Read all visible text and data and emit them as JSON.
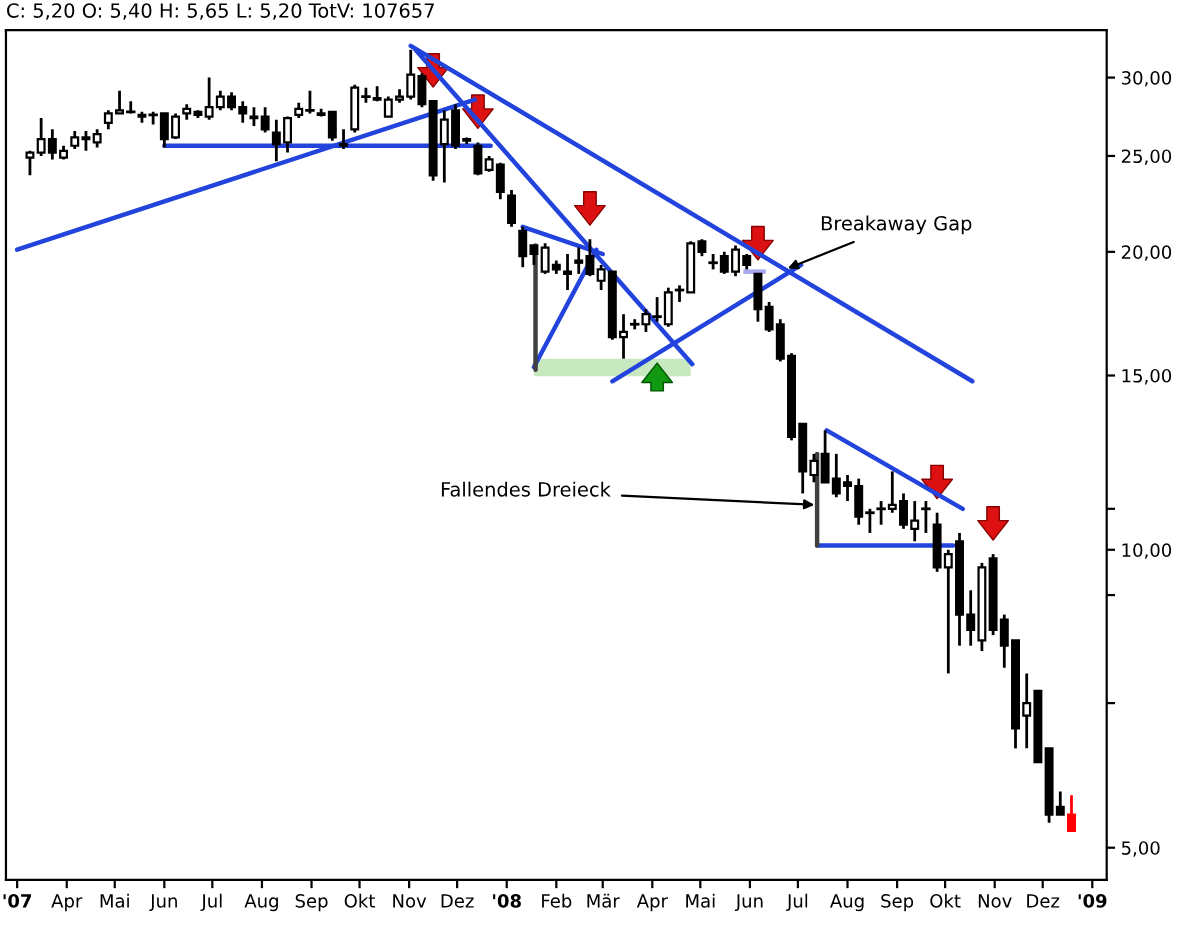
{
  "chart_data": {
    "type": "candlestick",
    "title": "C: 5,20 O: 5,40 H: 5,65 L: 5,20 TotV: 107657",
    "x": [
      "2007-03-09",
      "2007-03-16",
      "2007-03-23",
      "2007-03-30",
      "2007-04-06",
      "2007-04-13",
      "2007-04-20",
      "2007-04-27",
      "2007-05-04",
      "2007-05-11",
      "2007-05-18",
      "2007-05-25",
      "2007-06-01",
      "2007-06-08",
      "2007-06-15",
      "2007-06-22",
      "2007-06-29",
      "2007-07-06",
      "2007-07-13",
      "2007-07-20",
      "2007-07-27",
      "2007-08-03",
      "2007-08-10",
      "2007-08-17",
      "2007-08-24",
      "2007-08-31",
      "2007-09-07",
      "2007-09-14",
      "2007-09-21",
      "2007-09-28",
      "2007-10-05",
      "2007-10-12",
      "2007-10-19",
      "2007-10-26",
      "2007-11-02",
      "2007-11-09",
      "2007-11-16",
      "2007-11-23",
      "2007-11-30",
      "2007-12-07",
      "2007-12-14",
      "2007-12-21",
      "2007-12-28",
      "2008-01-04",
      "2008-01-11",
      "2008-01-18",
      "2008-01-25",
      "2008-02-01",
      "2008-02-08",
      "2008-02-15",
      "2008-02-22",
      "2008-02-29",
      "2008-03-07",
      "2008-03-14",
      "2008-03-21",
      "2008-03-28",
      "2008-04-04",
      "2008-04-11",
      "2008-04-18",
      "2008-04-25",
      "2008-05-02",
      "2008-05-09",
      "2008-05-16",
      "2008-05-23",
      "2008-05-30",
      "2008-06-06",
      "2008-06-13",
      "2008-06-20",
      "2008-06-27",
      "2008-07-04",
      "2008-07-11",
      "2008-07-18",
      "2008-07-25",
      "2008-08-01",
      "2008-08-08",
      "2008-08-15",
      "2008-08-22",
      "2008-08-29",
      "2008-09-05",
      "2008-09-12",
      "2008-09-19",
      "2008-09-26",
      "2008-10-03",
      "2008-10-10",
      "2008-10-17",
      "2008-10-24",
      "2008-10-31",
      "2008-11-07",
      "2008-11-14",
      "2008-11-21",
      "2008-11-28",
      "2008-12-05",
      "2008-12-12",
      "2008-12-19"
    ],
    "ohlc": [
      [
        24.9,
        25.3,
        23.9,
        25.2
      ],
      [
        25.2,
        27.3,
        25.0,
        26.0
      ],
      [
        26.0,
        26.6,
        24.8,
        25.2
      ],
      [
        24.9,
        25.6,
        24.8,
        25.3
      ],
      [
        25.6,
        26.5,
        25.4,
        26.1
      ],
      [
        26.0,
        26.5,
        25.3,
        26.1
      ],
      [
        25.8,
        26.6,
        25.5,
        26.3
      ],
      [
        27.0,
        27.8,
        26.6,
        27.6
      ],
      [
        27.6,
        29.1,
        27.6,
        27.8
      ],
      [
        27.7,
        28.4,
        27.6,
        27.7
      ],
      [
        27.5,
        27.7,
        27.0,
        27.4
      ],
      [
        27.5,
        27.7,
        26.9,
        27.5
      ],
      [
        27.6,
        27.6,
        25.5,
        26.0
      ],
      [
        26.1,
        27.6,
        26.0,
        27.4
      ],
      [
        27.6,
        28.2,
        27.2,
        27.9
      ],
      [
        27.7,
        27.8,
        27.3,
        27.5
      ],
      [
        27.4,
        30.0,
        27.2,
        28.0
      ],
      [
        28.0,
        29.1,
        27.8,
        28.7
      ],
      [
        28.7,
        29.0,
        27.8,
        28.0
      ],
      [
        28.0,
        28.4,
        27.0,
        27.6
      ],
      [
        27.4,
        28.0,
        26.8,
        27.3
      ],
      [
        27.4,
        28.0,
        26.4,
        26.6
      ],
      [
        26.4,
        27.2,
        24.7,
        25.7
      ],
      [
        25.8,
        27.4,
        25.2,
        27.3
      ],
      [
        27.5,
        28.3,
        27.3,
        27.9
      ],
      [
        27.8,
        29.1,
        27.6,
        27.8
      ],
      [
        27.6,
        27.9,
        27.4,
        27.5
      ],
      [
        27.7,
        27.7,
        25.9,
        26.1
      ],
      [
        25.7,
        26.6,
        25.4,
        25.6
      ],
      [
        26.6,
        29.5,
        26.4,
        29.3
      ],
      [
        28.7,
        29.3,
        28.3,
        28.7
      ],
      [
        28.6,
        29.4,
        28.4,
        28.5
      ],
      [
        27.4,
        28.7,
        27.4,
        28.5
      ],
      [
        28.5,
        29.2,
        28.3,
        28.7
      ],
      [
        28.7,
        32.0,
        28.5,
        30.2
      ],
      [
        30.1,
        30.3,
        28.0,
        28.2
      ],
      [
        28.4,
        28.4,
        23.6,
        23.9
      ],
      [
        25.7,
        27.8,
        23.5,
        27.2
      ],
      [
        27.8,
        28.2,
        25.4,
        25.6
      ],
      [
        26.0,
        26.1,
        25.7,
        25.9
      ],
      [
        25.6,
        25.8,
        23.9,
        24.0
      ],
      [
        24.2,
        25.0,
        24.1,
        24.8
      ],
      [
        24.5,
        24.6,
        22.6,
        23.0
      ],
      [
        22.8,
        23.1,
        21.2,
        21.4
      ],
      [
        21.0,
        21.2,
        19.3,
        19.8
      ],
      [
        20.3,
        20.3,
        19.4,
        19.9
      ],
      [
        19.1,
        20.4,
        19.0,
        20.2
      ],
      [
        19.4,
        19.6,
        19.0,
        19.2
      ],
      [
        19.1,
        19.9,
        18.3,
        19.0
      ],
      [
        19.6,
        20.2,
        19.0,
        19.5
      ],
      [
        19.8,
        20.6,
        18.9,
        19.0
      ],
      [
        18.7,
        19.4,
        18.3,
        19.2
      ],
      [
        19.1,
        19.1,
        16.3,
        16.4
      ],
      [
        16.4,
        17.3,
        15.6,
        16.6
      ],
      [
        16.9,
        17.1,
        16.7,
        16.9
      ],
      [
        16.9,
        17.5,
        16.6,
        17.3
      ],
      [
        17.2,
        18.0,
        17.0,
        17.2
      ],
      [
        16.9,
        18.4,
        16.8,
        18.2
      ],
      [
        18.3,
        18.5,
        17.8,
        18.3
      ],
      [
        18.2,
        20.5,
        18.2,
        20.4
      ],
      [
        20.5,
        20.6,
        19.8,
        20.0
      ],
      [
        19.5,
        19.9,
        19.2,
        19.5
      ],
      [
        19.8,
        20.0,
        19.0,
        19.1
      ],
      [
        19.1,
        20.3,
        18.9,
        20.1
      ],
      [
        19.8,
        19.9,
        19.2,
        19.4
      ],
      [
        19.0,
        19.0,
        17.0,
        17.5
      ],
      [
        17.6,
        17.8,
        16.6,
        16.7
      ],
      [
        16.9,
        17.1,
        15.5,
        15.6
      ],
      [
        15.7,
        15.8,
        12.9,
        13.0
      ],
      [
        13.4,
        13.4,
        11.4,
        12.0
      ],
      [
        11.9,
        12.5,
        11.7,
        12.3
      ],
      [
        12.5,
        13.2,
        11.7,
        11.7
      ],
      [
        11.8,
        12.5,
        11.3,
        11.4
      ],
      [
        11.7,
        11.9,
        11.2,
        11.6
      ],
      [
        11.6,
        11.8,
        10.6,
        10.8
      ],
      [
        10.9,
        11.0,
        10.4,
        10.9
      ],
      [
        11.0,
        11.2,
        10.6,
        11.0
      ],
      [
        11.0,
        12.0,
        10.9,
        11.1
      ],
      [
        11.2,
        11.4,
        10.5,
        10.6
      ],
      [
        10.5,
        11.2,
        10.2,
        10.7
      ],
      [
        11.0,
        11.2,
        10.4,
        11.0
      ],
      [
        10.6,
        10.9,
        9.5,
        9.6
      ],
      [
        9.6,
        10.0,
        7.5,
        9.9
      ],
      [
        10.2,
        10.4,
        8.0,
        8.6
      ],
      [
        8.6,
        9.1,
        8.0,
        8.3
      ],
      [
        8.1,
        9.7,
        7.9,
        9.6
      ],
      [
        9.8,
        9.9,
        8.2,
        8.3
      ],
      [
        8.5,
        8.6,
        7.6,
        8.0
      ],
      [
        8.1,
        8.1,
        6.3,
        6.6
      ],
      [
        6.8,
        7.5,
        6.3,
        7.0
      ],
      [
        7.2,
        7.2,
        6.1,
        6.1
      ],
      [
        6.3,
        6.3,
        5.3,
        5.4
      ],
      [
        5.5,
        5.7,
        5.4,
        5.4
      ],
      [
        5.4,
        5.65,
        5.2,
        5.2
      ]
    ],
    "colors": [
      "#ffffff",
      "#ffffff",
      "#000000",
      "#ffffff",
      "#ffffff",
      "#ffffff",
      "#ffffff",
      "#ffffff",
      "#ffffff",
      "#000000",
      "#000000",
      "#000000",
      "#000000",
      "#ffffff",
      "#ffffff",
      "#000000",
      "#ffffff",
      "#ffffff",
      "#000000",
      "#000000",
      "#000000",
      "#000000",
      "#000000",
      "#ffffff",
      "#ffffff",
      "#000000",
      "#000000",
      "#000000",
      "#000000",
      "#ffffff",
      "#000000",
      "#000000",
      "#ffffff",
      "#ffffff",
      "#ffffff",
      "#000000",
      "#000000",
      "#ffffff",
      "#000000",
      "#000000",
      "#000000",
      "#ffffff",
      "#000000",
      "#000000",
      "#000000",
      "#000000",
      "#ffffff",
      "#000000",
      "#000000",
      "#000000",
      "#000000",
      "#ffffff",
      "#000000",
      "#ffffff",
      "#000000",
      "#ffffff",
      "#000000",
      "#ffffff",
      "#000000",
      "#ffffff",
      "#000000",
      "#000000",
      "#000000",
      "#ffffff",
      "#000000",
      "#000000",
      "#000000",
      "#000000",
      "#000000",
      "#000000",
      "#ffffff",
      "#000000",
      "#000000",
      "#000000",
      "#000000",
      "#000000",
      "#000000",
      "#ffffff",
      "#000000",
      "#ffffff",
      "#000000",
      "#000000",
      "#ffffff",
      "#000000",
      "#000000",
      "#ffffff",
      "#000000",
      "#000000",
      "#000000",
      "#ffffff",
      "#000000",
      "#000000",
      "#000000",
      "#ff0000"
    ],
    "series": [
      {
        "type": "line",
        "color": "#2244dd",
        "x": [
          "2007-03-01",
          "2007-12-12"
        ],
        "values": [
          20.1,
          28.5
        ]
      },
      {
        "type": "line",
        "color": "#2244dd",
        "x": [
          "2007-06-01",
          "2007-12-22"
        ],
        "values": [
          25.6,
          25.6
        ]
      },
      {
        "type": "line",
        "color": "#2244dd",
        "x": [
          "2007-11-02",
          "2008-10-18"
        ],
        "values": [
          32.3,
          14.8
        ]
      },
      {
        "type": "line",
        "color": "#2244dd",
        "x": [
          "2007-11-05",
          "2008-04-26"
        ],
        "values": [
          32.0,
          15.4
        ]
      },
      {
        "type": "line",
        "color": "#2244dd",
        "x": [
          "2008-01-11",
          "2008-03-01"
        ],
        "values": [
          21.2,
          19.9
        ]
      },
      {
        "type": "line",
        "color": "#2244dd",
        "x": [
          "2008-01-18",
          "2008-02-26"
        ],
        "values": [
          15.3,
          20.1
        ]
      },
      {
        "type": "line",
        "color": "#404040",
        "x": [
          "2008-01-19",
          "2008-01-19"
        ],
        "values": [
          20.3,
          15.2
        ]
      },
      {
        "type": "line",
        "color": "#2244dd",
        "x": [
          "2008-03-07",
          "2008-07-03"
        ],
        "values": [
          14.8,
          19.4
        ]
      },
      {
        "type": "line",
        "color": "#2244dd",
        "x": [
          "2008-07-19",
          "2008-10-12"
        ],
        "values": [
          13.2,
          11.0
        ]
      },
      {
        "type": "line",
        "color": "#2244dd",
        "x": [
          "2008-07-13",
          "2008-10-06"
        ],
        "values": [
          10.1,
          10.1
        ]
      },
      {
        "type": "line",
        "color": "#404040",
        "x": [
          "2008-07-13",
          "2008-07-13"
        ],
        "values": [
          12.5,
          10.1
        ]
      }
    ],
    "annotations": [
      {
        "text": "Breakaway Gap",
        "x": "2008-06-23",
        "y": 19.2
      },
      {
        "text": "Fallendes Dreieck",
        "x": "2008-07-13",
        "y": 11.1
      }
    ],
    "log": true,
    "xlim": [
      "2007-02-22",
      "2009-01-10"
    ],
    "xticks": [
      {
        "value": "2007-03-01",
        "label": "'07"
      },
      {
        "value": "2007-04-01",
        "label": "Apr"
      },
      {
        "value": "2007-05-01",
        "label": "Mai"
      },
      {
        "value": "2007-06-01",
        "label": "Jun"
      },
      {
        "value": "2007-07-01",
        "label": "Jul"
      },
      {
        "value": "2007-08-01",
        "label": "Aug"
      },
      {
        "value": "2007-09-01",
        "label": "Sep"
      },
      {
        "value": "2007-10-01",
        "label": "Okt"
      },
      {
        "value": "2007-11-01",
        "label": "Nov"
      },
      {
        "value": "2007-12-01",
        "label": "Dez"
      },
      {
        "value": "2008-01-01",
        "label": "'08"
      },
      {
        "value": "2008-02-01",
        "label": "Feb"
      },
      {
        "value": "2008-03-01",
        "label": "Mär"
      },
      {
        "value": "2008-04-01",
        "label": "Apr"
      },
      {
        "value": "2008-05-01",
        "label": "Mai"
      },
      {
        "value": "2008-06-01",
        "label": "Jun"
      },
      {
        "value": "2008-07-01",
        "label": "Jul"
      },
      {
        "value": "2008-08-01",
        "label": "Aug"
      },
      {
        "value": "2008-09-01",
        "label": "Sep"
      },
      {
        "value": "2008-10-01",
        "label": "Okt"
      },
      {
        "value": "2008-11-01",
        "label": "Nov"
      },
      {
        "value": "2008-12-01",
        "label": "Dez"
      },
      {
        "value": "2009-01-01",
        "label": "'09"
      }
    ],
    "ylim": [
      4.64,
      33.5
    ],
    "yticks": [
      {
        "value": 5,
        "label": "5,00"
      },
      {
        "value": 7,
        "label": null
      },
      {
        "value": 9,
        "label": null
      },
      {
        "value": 10,
        "label": "10,00"
      },
      {
        "value": 11,
        "label": null
      },
      {
        "value": 15,
        "label": "15,00"
      },
      {
        "value": 20,
        "label": "20,00"
      },
      {
        "value": 25,
        "label": "25,00"
      },
      {
        "value": 30,
        "label": "30,00"
      }
    ]
  }
}
